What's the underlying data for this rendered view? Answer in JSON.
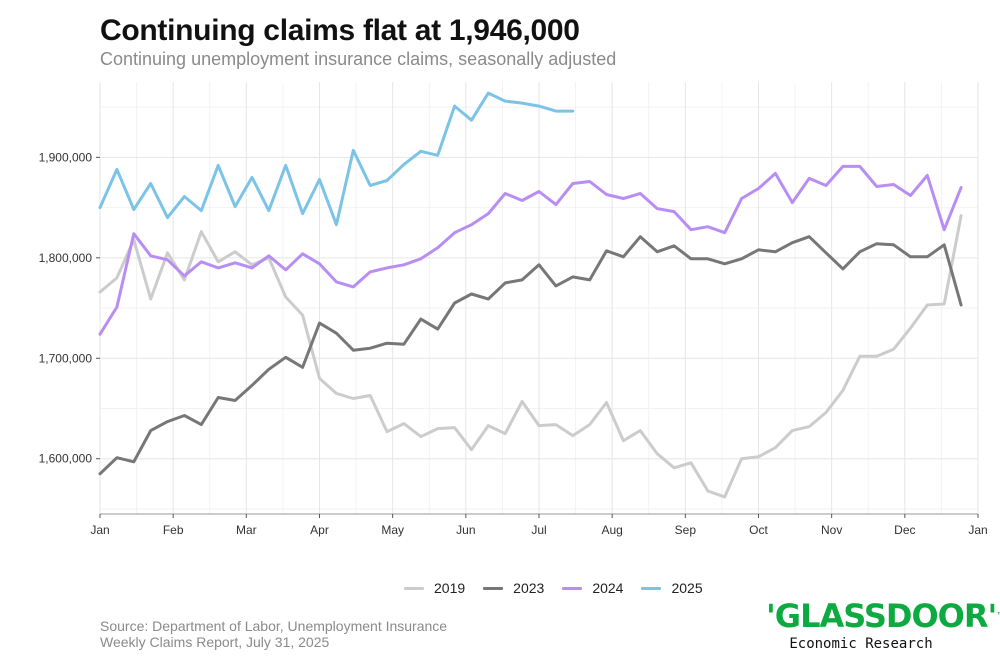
{
  "title": "Continuing claims flat at 1,946,000",
  "subtitle": "Continuing unemployment insurance claims, seasonally adjusted",
  "source_line1": "Source: Department of Labor, Unemployment Insurance",
  "source_line2": "Weekly Claims Report, July 31, 2025",
  "brand": {
    "logo": "'GLASSDOOR'",
    "tm": "™",
    "subtitle": "Economic Research"
  },
  "chart_data": {
    "type": "line",
    "x_unit": "week of year",
    "x_ticks": [
      "Jan",
      "Feb",
      "Mar",
      "Apr",
      "May",
      "Jun",
      "Jul",
      "Aug",
      "Sep",
      "Oct",
      "Nov",
      "Dec",
      "Jan"
    ],
    "y_ticks": [
      "1,600,000",
      "1,700,000",
      "1,800,000",
      "1,900,000"
    ],
    "ylim": [
      1545000,
      1975000
    ],
    "grid": true,
    "legend_position": "bottom",
    "series": [
      {
        "name": "2019",
        "color": "#cccccc",
        "start_week": 1,
        "values": [
          1766000,
          1780000,
          1818000,
          1759000,
          1805000,
          1778000,
          1826000,
          1796000,
          1806000,
          1793000,
          1800000,
          1761000,
          1743000,
          1680000,
          1665000,
          1660000,
          1663000,
          1627000,
          1635000,
          1622000,
          1630000,
          1631000,
          1609000,
          1633000,
          1625000,
          1657000,
          1633000,
          1634000,
          1623000,
          1634000,
          1656000,
          1618000,
          1628000,
          1605000,
          1591000,
          1596000,
          1568000,
          1562000,
          1600000,
          1602000,
          1611000,
          1628000,
          1632000,
          1646000,
          1668000,
          1702000,
          1702000,
          1709000,
          1730000,
          1753000,
          1754000,
          1842000
        ]
      },
      {
        "name": "2023",
        "color": "#777777",
        "start_week": 1,
        "values": [
          1585000,
          1601000,
          1597000,
          1628000,
          1637000,
          1643000,
          1634000,
          1661000,
          1658000,
          1673000,
          1689000,
          1701000,
          1691000,
          1735000,
          1725000,
          1708000,
          1710000,
          1715000,
          1714000,
          1739000,
          1729000,
          1755000,
          1764000,
          1759000,
          1775000,
          1778000,
          1793000,
          1772000,
          1781000,
          1778000,
          1807000,
          1801000,
          1821000,
          1806000,
          1812000,
          1799000,
          1799000,
          1794000,
          1799000,
          1808000,
          1806000,
          1815000,
          1821000,
          1805000,
          1789000,
          1806000,
          1814000,
          1813000,
          1801000,
          1801000,
          1813000,
          1753000
        ]
      },
      {
        "name": "2024",
        "color": "#b88ef5",
        "start_week": 1,
        "values": [
          1724000,
          1751000,
          1824000,
          1802000,
          1798000,
          1782000,
          1796000,
          1790000,
          1795000,
          1790000,
          1802000,
          1788000,
          1804000,
          1794000,
          1776000,
          1771000,
          1786000,
          1790000,
          1793000,
          1799000,
          1810000,
          1825000,
          1833000,
          1844000,
          1864000,
          1857000,
          1866000,
          1853000,
          1874000,
          1876000,
          1863000,
          1859000,
          1864000,
          1849000,
          1846000,
          1828000,
          1831000,
          1825000,
          1859000,
          1869000,
          1884000,
          1855000,
          1879000,
          1872000,
          1891000,
          1891000,
          1871000,
          1873000,
          1862000,
          1882000,
          1828000,
          1870000
        ]
      },
      {
        "name": "2025",
        "color": "#7cc3e8",
        "start_week": 1,
        "values": [
          1850000,
          1888000,
          1848000,
          1874000,
          1840000,
          1861000,
          1847000,
          1892000,
          1851000,
          1880000,
          1847000,
          1892000,
          1844000,
          1878000,
          1833000,
          1907000,
          1872000,
          1877000,
          1893000,
          1906000,
          1902000,
          1951000,
          1937000,
          1964000,
          1956000,
          1954000,
          1951000,
          1946000,
          1946000
        ]
      }
    ]
  }
}
